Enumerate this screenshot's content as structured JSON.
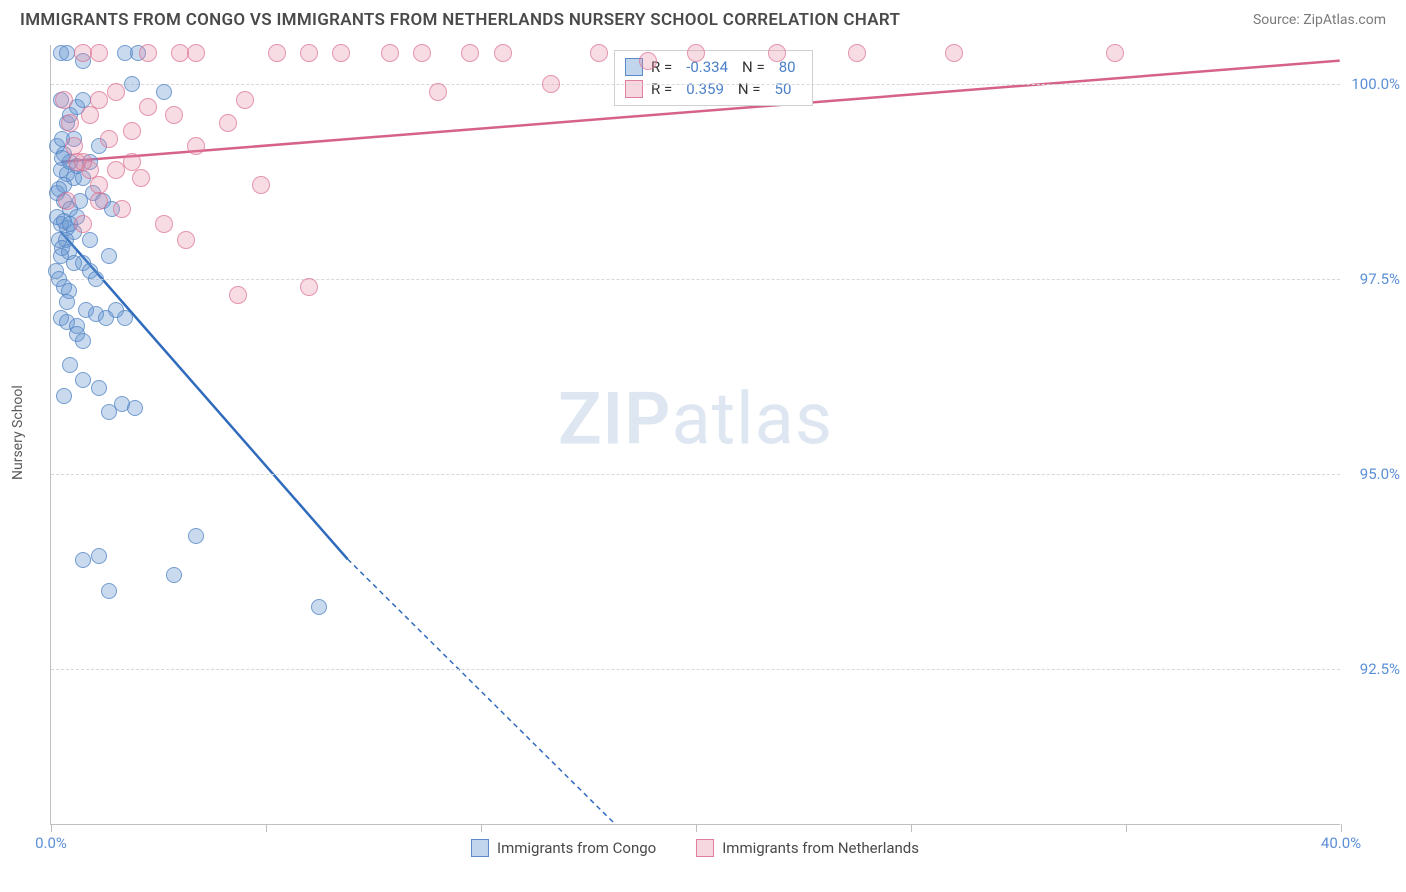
{
  "title": "IMMIGRANTS FROM CONGO VS IMMIGRANTS FROM NETHERLANDS NURSERY SCHOOL CORRELATION CHART",
  "source": "Source: ZipAtlas.com",
  "ylabel": "Nursery School",
  "watermark_zip": "ZIP",
  "watermark_atlas": "atlas",
  "chart": {
    "type": "scatter",
    "xlim": [
      0,
      40
    ],
    "ylim": [
      90.5,
      100.5
    ],
    "x_ticks": [
      0,
      6.67,
      13.33,
      20,
      26.67,
      33.33,
      40
    ],
    "x_tick_labels": {
      "0": "0.0%",
      "40": "40.0%"
    },
    "y_ticks": [
      92.5,
      95.0,
      97.5,
      100.0
    ],
    "y_tick_labels": [
      "92.5%",
      "95.0%",
      "97.5%",
      "100.0%"
    ],
    "background_color": "#ffffff",
    "grid_color": "#d8d8d8",
    "series": [
      {
        "name": "Immigrants from Congo",
        "color_fill": "rgba(100,149,210,0.35)",
        "color_stroke": "rgba(80,130,195,0.7)",
        "R": "-0.334",
        "N": "80",
        "trend": {
          "x1": 0.3,
          "y1": 98.1,
          "x2": 9.2,
          "y2": 93.9,
          "dash_x2": 17.5,
          "dash_y2": 90.5,
          "color": "#2f6bbd",
          "width": 2.5
        },
        "points": [
          [
            0.3,
            100.4
          ],
          [
            0.5,
            100.4
          ],
          [
            2.3,
            100.4
          ],
          [
            2.7,
            100.4
          ],
          [
            1.0,
            100.3
          ],
          [
            0.3,
            99.8
          ],
          [
            0.5,
            99.5
          ],
          [
            0.7,
            99.3
          ],
          [
            0.4,
            99.1
          ],
          [
            1.2,
            99.0
          ],
          [
            3.5,
            99.9
          ],
          [
            0.2,
            98.6
          ],
          [
            0.4,
            98.5
          ],
          [
            0.6,
            98.4
          ],
          [
            0.8,
            98.3
          ],
          [
            0.3,
            98.2
          ],
          [
            0.5,
            98.15
          ],
          [
            0.7,
            98.1
          ],
          [
            0.25,
            98.0
          ],
          [
            0.45,
            98.0
          ],
          [
            0.35,
            97.9
          ],
          [
            0.55,
            97.85
          ],
          [
            0.2,
            99.2
          ],
          [
            0.35,
            99.3
          ],
          [
            0.6,
            99.6
          ],
          [
            0.8,
            99.7
          ],
          [
            1.0,
            99.8
          ],
          [
            1.3,
            98.6
          ],
          [
            1.6,
            98.5
          ],
          [
            1.9,
            98.4
          ],
          [
            0.15,
            97.6
          ],
          [
            0.25,
            97.5
          ],
          [
            0.4,
            97.4
          ],
          [
            0.55,
            97.35
          ],
          [
            1.0,
            97.7
          ],
          [
            1.2,
            97.6
          ],
          [
            1.4,
            97.5
          ],
          [
            0.3,
            97.0
          ],
          [
            0.5,
            96.95
          ],
          [
            0.8,
            96.9
          ],
          [
            1.1,
            97.1
          ],
          [
            1.4,
            97.05
          ],
          [
            1.7,
            97.0
          ],
          [
            2.0,
            97.1
          ],
          [
            2.3,
            97.0
          ],
          [
            0.6,
            96.4
          ],
          [
            1.0,
            96.2
          ],
          [
            1.5,
            96.1
          ],
          [
            0.4,
            96.0
          ],
          [
            2.2,
            95.9
          ],
          [
            2.6,
            95.85
          ],
          [
            1.8,
            95.8
          ],
          [
            0.8,
            96.8
          ],
          [
            1.0,
            96.7
          ],
          [
            4.5,
            94.2
          ],
          [
            1.0,
            93.9
          ],
          [
            1.5,
            93.95
          ],
          [
            3.8,
            93.7
          ],
          [
            1.8,
            93.5
          ],
          [
            8.3,
            93.3
          ],
          [
            0.3,
            98.9
          ],
          [
            0.5,
            98.85
          ],
          [
            0.7,
            98.8
          ],
          [
            0.4,
            98.7
          ],
          [
            0.25,
            98.65
          ],
          [
            0.6,
            99.0
          ],
          [
            0.8,
            98.95
          ],
          [
            0.35,
            99.05
          ],
          [
            0.2,
            98.3
          ],
          [
            0.4,
            98.25
          ],
          [
            0.6,
            98.2
          ],
          [
            0.3,
            97.8
          ],
          [
            0.9,
            98.5
          ],
          [
            1.5,
            99.2
          ],
          [
            2.5,
            100.0
          ],
          [
            0.5,
            97.2
          ],
          [
            1.2,
            98.0
          ],
          [
            1.8,
            97.8
          ],
          [
            0.7,
            97.7
          ],
          [
            1.0,
            98.8
          ]
        ]
      },
      {
        "name": "Immigrants from Netherlands",
        "color_fill": "rgba(230,140,165,0.3)",
        "color_stroke": "rgba(220,110,145,0.65)",
        "R": "0.359",
        "N": "50",
        "trend": {
          "x1": 0.3,
          "y1": 99.0,
          "x2": 40,
          "y2": 100.3,
          "color": "#d6628a",
          "width": 2.5
        },
        "points": [
          [
            1.0,
            100.4
          ],
          [
            1.5,
            100.4
          ],
          [
            3.0,
            100.4
          ],
          [
            4.0,
            100.4
          ],
          [
            4.5,
            100.4
          ],
          [
            7.0,
            100.4
          ],
          [
            8.0,
            100.4
          ],
          [
            9.0,
            100.4
          ],
          [
            10.5,
            100.4
          ],
          [
            11.5,
            100.4
          ],
          [
            13.0,
            100.4
          ],
          [
            14.0,
            100.4
          ],
          [
            17.0,
            100.4
          ],
          [
            18.5,
            100.3
          ],
          [
            20.0,
            100.4
          ],
          [
            22.5,
            100.4
          ],
          [
            25.0,
            100.4
          ],
          [
            28.0,
            100.4
          ],
          [
            33.0,
            100.4
          ],
          [
            1.5,
            99.8
          ],
          [
            2.0,
            99.9
          ],
          [
            3.0,
            99.7
          ],
          [
            3.8,
            99.6
          ],
          [
            5.5,
            99.5
          ],
          [
            2.5,
            99.4
          ],
          [
            1.8,
            99.3
          ],
          [
            0.8,
            99.0
          ],
          [
            1.2,
            98.9
          ],
          [
            6.5,
            98.7
          ],
          [
            2.8,
            98.8
          ],
          [
            1.5,
            98.7
          ],
          [
            0.5,
            98.5
          ],
          [
            2.2,
            98.4
          ],
          [
            4.2,
            98.0
          ],
          [
            1.0,
            98.2
          ],
          [
            0.6,
            99.5
          ],
          [
            1.5,
            98.5
          ],
          [
            5.8,
            97.3
          ],
          [
            8.0,
            97.4
          ],
          [
            3.5,
            98.2
          ],
          [
            0.7,
            99.2
          ],
          [
            2.0,
            98.9
          ],
          [
            4.5,
            99.2
          ],
          [
            6.0,
            99.8
          ],
          [
            12.0,
            99.9
          ],
          [
            15.5,
            100.0
          ],
          [
            0.4,
            99.8
          ],
          [
            1.0,
            99.0
          ],
          [
            2.5,
            99.0
          ],
          [
            1.2,
            99.6
          ]
        ]
      }
    ]
  },
  "legend": {
    "series1": "Immigrants from Congo",
    "series2": "Immigrants from Netherlands"
  }
}
